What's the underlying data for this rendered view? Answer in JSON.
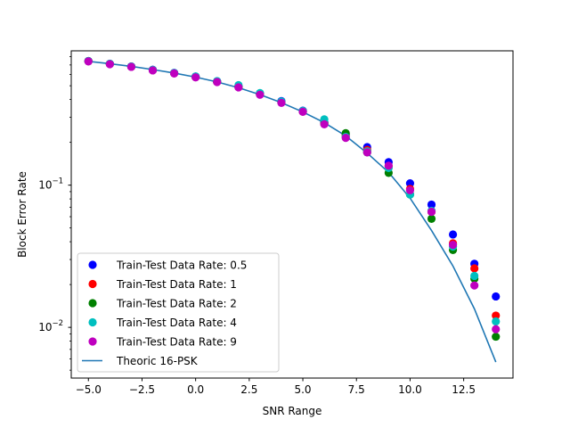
{
  "chart_data": {
    "type": "scatter",
    "title": "",
    "xlabel": "SNR Range",
    "ylabel": "Block Error Rate",
    "xlim": [
      -5.8,
      14.8
    ],
    "ylim": [
      0.0044,
      0.88
    ],
    "yscale": "log",
    "grid": false,
    "legend_position": "lower-left",
    "x_ticks": [
      -5.0,
      -2.5,
      0.0,
      2.5,
      5.0,
      7.5,
      10.0,
      12.5
    ],
    "x_tick_labels": [
      "−5.0",
      "−2.5",
      "0.0",
      "2.5",
      "5.0",
      "7.5",
      "10.0",
      "12.5"
    ],
    "y_ticks": [
      {
        "value": 0.1,
        "base": "10",
        "exp": "−1"
      },
      {
        "value": 0.01,
        "base": "10",
        "exp": "−2"
      }
    ],
    "y_minor_ticks": [
      0.005,
      0.006,
      0.007,
      0.008,
      0.009,
      0.02,
      0.03,
      0.04,
      0.05,
      0.06,
      0.07,
      0.08,
      0.09,
      0.2,
      0.3,
      0.4,
      0.5,
      0.6,
      0.7,
      0.8
    ],
    "x": [
      -5,
      -4,
      -3,
      -2,
      -1,
      0,
      1,
      2,
      3,
      4,
      5,
      6,
      7,
      8,
      9,
      10,
      11,
      12,
      13,
      14
    ],
    "series": [
      {
        "name": "Train-Test Data Rate: 0.5",
        "kind": "scatter",
        "color": "#0000ff",
        "values": [
          0.746,
          0.713,
          0.683,
          0.648,
          0.616,
          0.58,
          0.537,
          0.495,
          0.441,
          0.39,
          0.334,
          0.275,
          0.228,
          0.185,
          0.145,
          0.103,
          0.073,
          0.045,
          0.028,
          0.0165
        ]
      },
      {
        "name": "Train-Test Data Rate: 1",
        "kind": "scatter",
        "color": "#ff0000",
        "values": [
          0.744,
          0.711,
          0.68,
          0.645,
          0.612,
          0.577,
          0.533,
          0.491,
          0.436,
          0.384,
          0.329,
          0.27,
          0.223,
          0.177,
          0.136,
          0.094,
          0.065,
          0.039,
          0.026,
          0.0121
        ]
      },
      {
        "name": "Train-Test Data Rate: 2",
        "kind": "scatter",
        "color": "#008000",
        "values": [
          0.745,
          0.712,
          0.681,
          0.643,
          0.613,
          0.578,
          0.534,
          0.49,
          0.435,
          0.383,
          0.33,
          0.272,
          0.232,
          0.17,
          0.122,
          0.086,
          0.058,
          0.035,
          0.022,
          0.0086
        ]
      },
      {
        "name": "Train-Test Data Rate: 4",
        "kind": "scatter",
        "color": "#00bfbf",
        "values": [
          0.745,
          0.714,
          0.682,
          0.646,
          0.615,
          0.581,
          0.539,
          0.505,
          0.444,
          0.387,
          0.333,
          0.29,
          0.218,
          0.173,
          0.132,
          0.086,
          0.066,
          0.037,
          0.023,
          0.011
        ]
      },
      {
        "name": "Train-Test Data Rate: 9",
        "kind": "scatter",
        "color": "#bf00bf",
        "values": [
          0.741,
          0.709,
          0.679,
          0.641,
          0.61,
          0.573,
          0.531,
          0.487,
          0.432,
          0.379,
          0.328,
          0.268,
          0.215,
          0.17,
          0.137,
          0.092,
          0.065,
          0.038,
          0.0197,
          0.0097
        ]
      },
      {
        "name": "Theoric 16-PSK",
        "kind": "line",
        "color": "#1f77b4",
        "values": [
          0.742,
          0.714,
          0.684,
          0.65,
          0.614,
          0.575,
          0.532,
          0.484,
          0.433,
          0.38,
          0.327,
          0.275,
          0.222,
          0.168,
          0.123,
          0.081,
          0.048,
          0.027,
          0.0135,
          0.0057
        ]
      }
    ]
  }
}
